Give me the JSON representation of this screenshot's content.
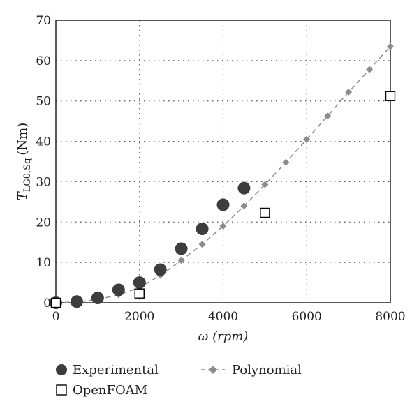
{
  "chart_data": {
    "type": "scatter",
    "title": "",
    "xlabel": "ω (rpm)",
    "ylabel": {
      "main": "T",
      "subscript": "LG0,Sq",
      "units": "(Nm)"
    },
    "xlim": [
      0,
      8000
    ],
    "ylim": [
      0,
      70
    ],
    "xticks": [
      0,
      2000,
      4000,
      6000,
      8000
    ],
    "yticks": [
      0,
      10,
      20,
      30,
      40,
      50,
      60,
      70
    ],
    "grid": true,
    "legend_position": "bottom",
    "series": [
      {
        "name": "Experimental",
        "marker": "circle",
        "color": "#3d3d3d",
        "points": [
          {
            "x": 0,
            "y": 0
          },
          {
            "x": 500,
            "y": 0.3
          },
          {
            "x": 1000,
            "y": 1.2
          },
          {
            "x": 1500,
            "y": 3.2
          },
          {
            "x": 2000,
            "y": 5.0
          },
          {
            "x": 2500,
            "y": 8.2
          },
          {
            "x": 3000,
            "y": 13.4
          },
          {
            "x": 3500,
            "y": 18.3
          },
          {
            "x": 4000,
            "y": 24.3
          },
          {
            "x": 4500,
            "y": 28.4
          }
        ]
      },
      {
        "name": "OpenFOAM",
        "marker": "square",
        "color": "#000000",
        "points": [
          {
            "x": 0,
            "y": 0
          },
          {
            "x": 2000,
            "y": 2.3
          },
          {
            "x": 5000,
            "y": 22.3
          },
          {
            "x": 8000,
            "y": 51.2
          }
        ]
      },
      {
        "name": "Polynomial",
        "marker": "diamond",
        "line": "dashed",
        "color": "#8c8c8c",
        "points": [
          {
            "x": 0,
            "y": 0
          },
          {
            "x": 500,
            "y": 0.2
          },
          {
            "x": 1000,
            "y": 0.8
          },
          {
            "x": 1500,
            "y": 2.0
          },
          {
            "x": 2000,
            "y": 3.8
          },
          {
            "x": 2500,
            "y": 6.8
          },
          {
            "x": 3000,
            "y": 10.5
          },
          {
            "x": 3500,
            "y": 14.5
          },
          {
            "x": 4000,
            "y": 19.0
          },
          {
            "x": 4500,
            "y": 24.0
          },
          {
            "x": 5000,
            "y": 29.3
          },
          {
            "x": 5500,
            "y": 34.8
          },
          {
            "x": 6000,
            "y": 40.5
          },
          {
            "x": 6500,
            "y": 46.3
          },
          {
            "x": 7000,
            "y": 52.2
          },
          {
            "x": 7500,
            "y": 57.8
          },
          {
            "x": 8000,
            "y": 63.5
          }
        ]
      }
    ]
  }
}
